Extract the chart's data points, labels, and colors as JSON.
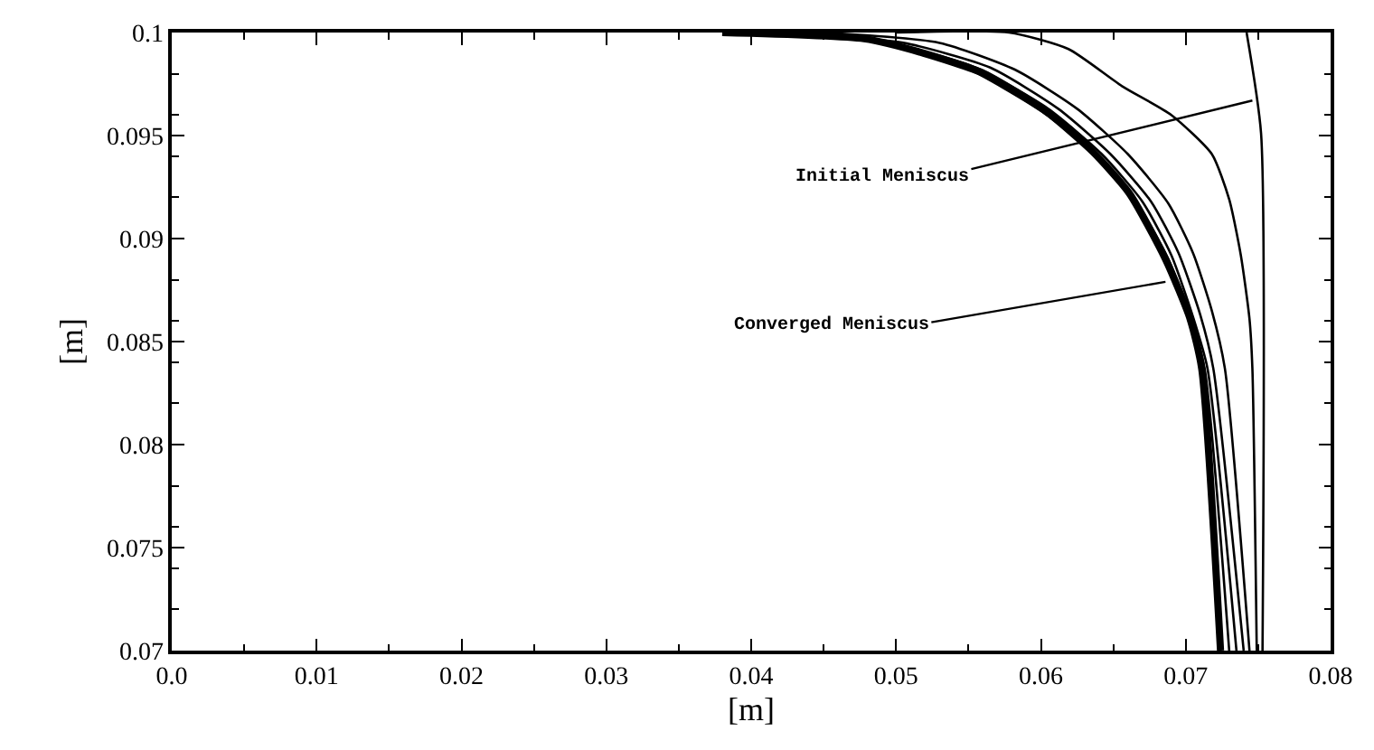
{
  "chart_data": {
    "type": "line",
    "xlabel": "[m]",
    "ylabel": "[m]",
    "xlim": [
      0,
      0.08
    ],
    "ylim": [
      0.07,
      0.1
    ],
    "xticks": [
      {
        "value": 0,
        "label": "0.0"
      },
      0.01,
      0.02,
      0.03,
      0.04,
      0.05,
      0.06,
      0.07,
      0.08
    ],
    "yticks": [
      0.07,
      0.075,
      0.08,
      0.085,
      0.09,
      0.095,
      0.1
    ],
    "marker": "none",
    "line_style": "solid",
    "annotations": [
      {
        "text": "Initial Meniscus",
        "x": 0.0746,
        "y": 0.0967
      },
      {
        "text": "Converged Meniscus",
        "x": 0.0686,
        "y": 0.0879
      }
    ],
    "series": [
      {
        "color": "#000000",
        "x": [
          0.0742,
          0.0752,
          0.0753
        ],
        "values": [
          0.1,
          0.0951,
          0.07
        ]
      },
      {
        "color": "#000000",
        "x": [
          0.05,
          0.0578,
          0.0619,
          0.0656,
          0.069,
          0.0718,
          0.073,
          0.0738,
          0.0744,
          0.0746,
          0.0749
        ],
        "values": [
          0.1,
          0.1,
          0.0992,
          0.0974,
          0.096,
          0.0941,
          0.0919,
          0.0892,
          0.0861,
          0.0837,
          0.07
        ]
      },
      {
        "color": "#000000",
        "x": [
          0.045,
          0.053,
          0.0582,
          0.0625,
          0.066,
          0.0688,
          0.0705,
          0.0718,
          0.0727,
          0.0744
        ],
        "values": [
          0.1,
          0.0995,
          0.0982,
          0.0963,
          0.0941,
          0.0917,
          0.0893,
          0.0865,
          0.0837,
          0.07
        ]
      },
      {
        "color": "#000000",
        "x": [
          0.042,
          0.0505,
          0.0565,
          0.0612,
          0.0648,
          0.0676,
          0.0695,
          0.071,
          0.0719,
          0.074
        ],
        "values": [
          0.1,
          0.0995,
          0.0983,
          0.0963,
          0.0941,
          0.0918,
          0.0893,
          0.0863,
          0.0837,
          0.07
        ]
      },
      {
        "color": "#000000",
        "x": [
          0.04,
          0.0495,
          0.0555,
          0.0605,
          0.0642,
          0.067,
          0.069,
          0.0705,
          0.0715,
          0.0735
        ],
        "values": [
          0.1,
          0.0995,
          0.0983,
          0.0963,
          0.0941,
          0.0918,
          0.0892,
          0.0862,
          0.0837,
          0.07
        ]
      },
      {
        "color": "#000000",
        "x": [
          0.039,
          0.0485,
          0.0548,
          0.06,
          0.0638,
          0.0664,
          0.0688,
          0.0703,
          0.0713,
          0.073
        ],
        "values": [
          0.1,
          0.0996,
          0.0983,
          0.0962,
          0.0941,
          0.092,
          0.089,
          0.0862,
          0.0837,
          0.07
        ]
      },
      {
        "color": "#000000",
        "x": [
          0.038,
          0.0478,
          0.0519,
          0.0561,
          0.0603,
          0.0636,
          0.0661,
          0.0686,
          0.0703,
          0.0711,
          0.0724
        ],
        "values": [
          0.1,
          0.0997,
          0.099,
          0.098,
          0.0962,
          0.0942,
          0.0922,
          0.089,
          0.0861,
          0.0837,
          0.07
        ]
      }
    ]
  }
}
